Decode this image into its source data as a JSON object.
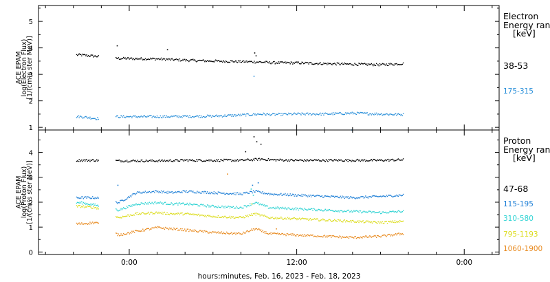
{
  "chart_data": [
    {
      "type": "scatter",
      "ylabel": [
        "ACE EPAM",
        "log(Electron Flux)",
        "[1/(cm²s ster MeV)]"
      ],
      "yticks": [
        "1",
        "2",
        "3",
        "4",
        "5"
      ],
      "ylim": [
        0.9,
        5.6
      ],
      "legend_title": [
        "Electron",
        "Energy ran",
        "[keV]"
      ],
      "series": [
        {
          "name": "38-53",
          "color": "#000000",
          "x": [
            -3.5,
            -2.4,
            -1.0,
            2.0,
            4.0,
            6.0,
            8.0,
            9.5,
            10.0,
            12.0,
            14.0,
            16.0,
            18.0,
            19.5
          ],
          "y": [
            3.75,
            3.7,
            3.62,
            3.6,
            3.55,
            3.52,
            3.5,
            3.48,
            3.46,
            3.45,
            3.42,
            3.4,
            3.38,
            3.42
          ],
          "outliers": {
            "x": [
              -0.9,
              2.7,
              8.95,
              9.05
            ],
            "y": [
              4.1,
              3.95,
              3.83,
              3.72
            ]
          }
        },
        {
          "name": "175-315",
          "color": "#2a8fd9",
          "x": [
            -3.5,
            -2.4,
            -1.0,
            2.0,
            4.0,
            6.0,
            8.0,
            9.5,
            10.0,
            12.0,
            14.0,
            16.0,
            18.0,
            19.5
          ],
          "y": [
            1.42,
            1.35,
            1.42,
            1.42,
            1.43,
            1.44,
            1.48,
            1.52,
            1.5,
            1.52,
            1.52,
            1.55,
            1.52,
            1.5
          ],
          "outliers": {
            "x": [
              8.9,
              15.9
            ],
            "y": [
              2.95,
              0.92
            ]
          }
        }
      ]
    },
    {
      "type": "scatter",
      "ylabel": [
        "ACE EPAM",
        "log(Proton Flux)",
        "[1/(cm²s ster MeV)]"
      ],
      "yticks": [
        "0",
        "1",
        "2",
        "3",
        "4"
      ],
      "ylim": [
        -0.1,
        4.9
      ],
      "legend_title": [
        "Proton",
        "Energy ran",
        "[keV]"
      ],
      "series": [
        {
          "name": "47-68",
          "color": "#000000",
          "x": [
            -3.5,
            -2.4,
            -1.0,
            2.0,
            4.0,
            6.0,
            8.0,
            9.5,
            10.0,
            12.0,
            14.0,
            16.0,
            18.0,
            19.5
          ],
          "y": [
            3.7,
            3.7,
            3.68,
            3.68,
            3.7,
            3.7,
            3.7,
            3.75,
            3.72,
            3.7,
            3.7,
            3.7,
            3.7,
            3.72
          ],
          "outliers": {
            "x": [
              8.3,
              8.9,
              9.1,
              9.4
            ],
            "y": [
              4.05,
              4.65,
              4.45,
              4.35
            ]
          }
        },
        {
          "name": "115-195",
          "color": "#1e7fd6",
          "x": [
            -3.5,
            -2.4,
            -0.8,
            0.5,
            2.0,
            3.0,
            4.0,
            6.0,
            8.0,
            9.0,
            10.0,
            12.0,
            14.0,
            16.0,
            18.0,
            19.5
          ],
          "y": [
            2.2,
            2.2,
            2.0,
            2.4,
            2.45,
            2.4,
            2.45,
            2.4,
            2.35,
            2.45,
            2.35,
            2.3,
            2.25,
            2.2,
            2.25,
            2.3
          ],
          "outliers": {
            "x": [
              -0.85,
              8.8,
              9.2
            ],
            "y": [
              2.7,
              2.7,
              2.8
            ]
          }
        },
        {
          "name": "310-580",
          "color": "#2fd3d3",
          "x": [
            -3.5,
            -2.4,
            -0.8,
            0.5,
            2.0,
            3.0,
            4.0,
            6.0,
            8.0,
            9.0,
            10.0,
            12.0,
            14.0,
            16.0,
            18.0,
            19.5
          ],
          "y": [
            2.0,
            1.9,
            1.7,
            1.95,
            2.0,
            1.95,
            1.95,
            1.85,
            1.8,
            2.0,
            1.8,
            1.75,
            1.7,
            1.65,
            1.6,
            1.65
          ],
          "outliers": {
            "x": [
              8.7,
              8.85
            ],
            "y": [
              2.55,
              2.3
            ]
          }
        },
        {
          "name": "795-1193",
          "color": "#dcdc1e",
          "x": [
            -3.5,
            -2.4,
            -0.8,
            0.5,
            2.0,
            3.0,
            4.0,
            6.0,
            8.0,
            9.0,
            10.0,
            12.0,
            14.0,
            16.0,
            18.0,
            19.5
          ],
          "y": [
            1.85,
            1.8,
            1.4,
            1.55,
            1.6,
            1.55,
            1.55,
            1.45,
            1.4,
            1.55,
            1.4,
            1.35,
            1.3,
            1.25,
            1.2,
            1.25
          ],
          "outliers": {
            "x": [
              8.75
            ],
            "y": [
              1.95
            ]
          }
        },
        {
          "name": "1060-1900",
          "color": "#e88a1f",
          "x": [
            -3.5,
            -2.4,
            -0.8,
            0.5,
            2.0,
            3.0,
            4.0,
            6.0,
            8.0,
            9.0,
            10.0,
            12.0,
            14.0,
            16.0,
            18.0,
            19.5
          ],
          "y": [
            1.15,
            1.2,
            0.7,
            0.85,
            1.0,
            0.95,
            0.9,
            0.8,
            0.75,
            0.95,
            0.75,
            0.7,
            0.65,
            0.6,
            0.65,
            0.75
          ],
          "outliers": {
            "x": [
              7.0,
              10.5
            ],
            "y": [
              3.15,
              0.95
            ]
          }
        }
      ]
    }
  ],
  "x_axis": {
    "ticks": [
      {
        "value": 0,
        "label": "0:00"
      },
      {
        "value": 12,
        "label": "12:00"
      },
      {
        "value": 24,
        "label": "0:00"
      }
    ],
    "range": [
      -6.5,
      26.5
    ],
    "minor_step": 2,
    "data_start": -3.8,
    "data_end": 19.6,
    "gap": [
      -2.2,
      -1.0
    ]
  },
  "xlabel": "hours:minutes, Feb. 16, 2023 - Feb. 18, 2023"
}
